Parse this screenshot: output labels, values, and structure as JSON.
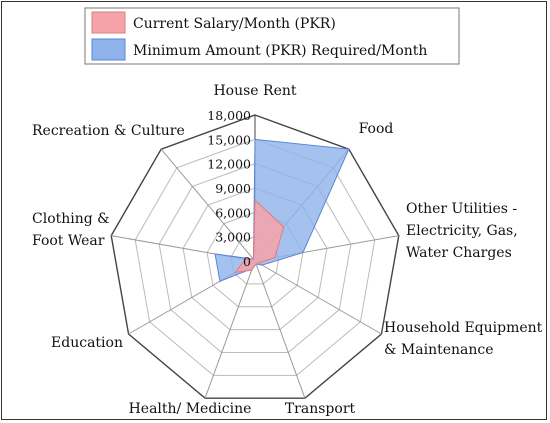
{
  "chart_data": {
    "type": "radar",
    "categories": [
      {
        "lines": [
          "House Rent"
        ]
      },
      {
        "lines": [
          "Food"
        ]
      },
      {
        "lines": [
          "Other Utilities -",
          "Electricity, Gas,",
          "Water Charges"
        ]
      },
      {
        "lines": [
          "Household Equipment",
          "& Maintenance"
        ]
      },
      {
        "lines": [
          "Transport"
        ]
      },
      {
        "lines": [
          "Health/ Medicine"
        ]
      },
      {
        "lines": [
          "Education"
        ]
      },
      {
        "lines": [
          "Clothing &",
          "Foot Wear"
        ]
      },
      {
        "lines": [
          "Recreation & Culture"
        ]
      }
    ],
    "rmax": 18000,
    "ticks": [
      "0",
      "3,000",
      "6,000",
      "9,000",
      "12,000",
      "15,000",
      "18,000"
    ],
    "tick_values": [
      0,
      3000,
      6000,
      9000,
      12000,
      15000,
      18000
    ],
    "grid_levels": 6,
    "legend_position": "top",
    "series": [
      {
        "name": "Current Salary/Month (PKR)",
        "color": "#f5a3a8",
        "stroke": "#e07b82",
        "values": [
          7500,
          5500,
          2500,
          500,
          400,
          1200,
          2800,
          1200,
          300
        ]
      },
      {
        "name": "Minimum Amount (PKR) Required/Month",
        "color": "#8fb2ea",
        "stroke": "#5b86d6",
        "values": [
          15000,
          18000,
          6000,
          1000,
          400,
          1000,
          5000,
          5000,
          300
        ]
      }
    ]
  }
}
